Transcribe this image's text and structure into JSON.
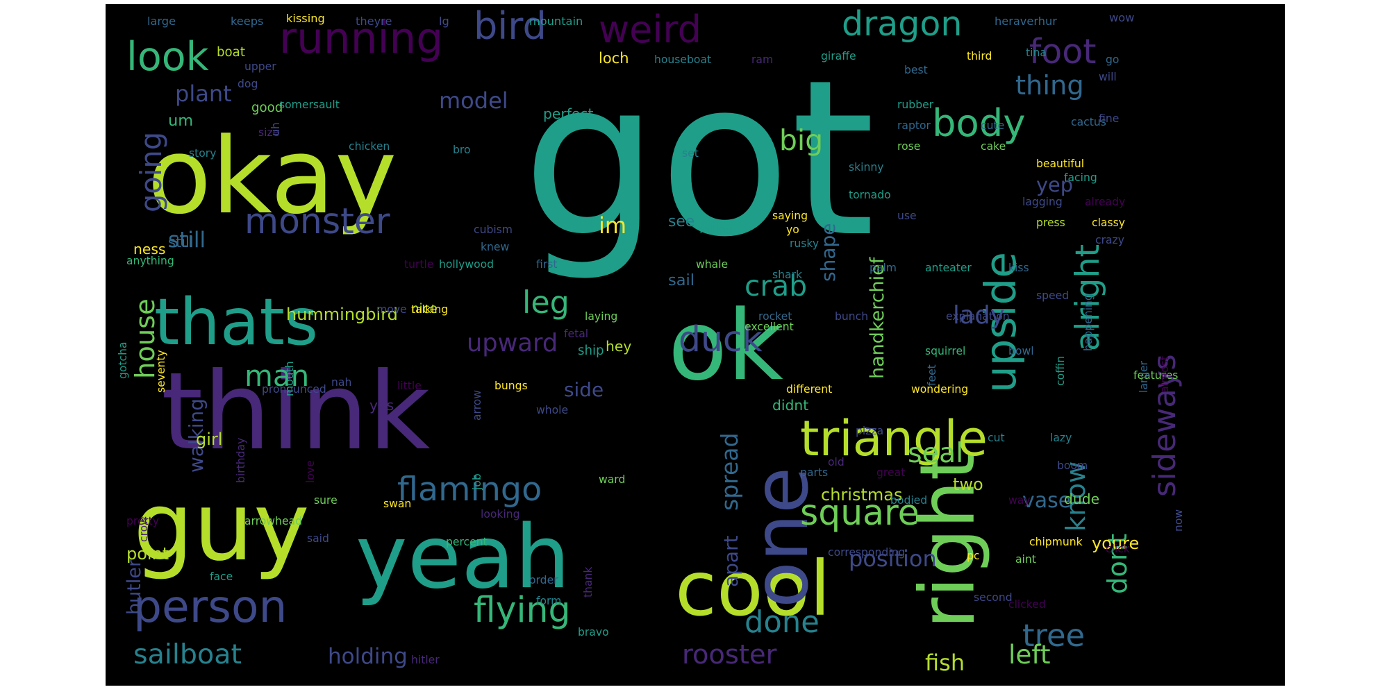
{
  "background": "#000000",
  "palette": [
    "#440154",
    "#482878",
    "#3e4989",
    "#31688e",
    "#26828e",
    "#1f9e89",
    "#35b779",
    "#6ece58",
    "#b5de2b",
    "#fde725"
  ],
  "words": [
    {
      "text": "got",
      "size": 100,
      "color": "#1f9e89"
    },
    {
      "text": "okay",
      "size": 72,
      "color": "#b5de2b"
    },
    {
      "text": "think",
      "size": 70,
      "color": "#482878"
    },
    {
      "text": "guy",
      "size": 62,
      "color": "#b5de2b"
    },
    {
      "text": "yeah",
      "size": 60,
      "color": "#1f9e89"
    },
    {
      "text": "thats",
      "size": 50,
      "color": "#1f9e89"
    },
    {
      "text": "ok",
      "size": 58,
      "color": "#35b779"
    },
    {
      "text": "cool",
      "size": 52,
      "color": "#b5de2b"
    },
    {
      "text": "right",
      "size": 52,
      "color": "#6ece58"
    },
    {
      "text": "one",
      "size": 52,
      "color": "#3e4989"
    },
    {
      "text": "triangle",
      "size": 40,
      "color": "#b5de2b"
    },
    {
      "text": "person",
      "size": 38,
      "color": "#3e4989"
    },
    {
      "text": "running",
      "size": 34,
      "color": "#440154"
    },
    {
      "text": "upside",
      "size": 34,
      "color": "#1f9e89"
    },
    {
      "text": "body",
      "size": 32,
      "color": "#35b779"
    },
    {
      "text": "bird",
      "size": 30,
      "color": "#3e4989"
    },
    {
      "text": "weird",
      "size": 30,
      "color": "#440154"
    },
    {
      "text": "look",
      "size": 30,
      "color": "#35b779"
    },
    {
      "text": "dragon",
      "size": 28,
      "color": "#1f9e89"
    },
    {
      "text": "foot",
      "size": 28,
      "color": "#482878"
    },
    {
      "text": "monster",
      "size": 28,
      "color": "#3e4989"
    },
    {
      "text": "square",
      "size": 28,
      "color": "#6ece58"
    },
    {
      "text": "flamingo",
      "size": 28,
      "color": "#31688e"
    },
    {
      "text": "flying",
      "size": 28,
      "color": "#35b779"
    },
    {
      "text": "tree",
      "size": 28,
      "color": "#31688e"
    },
    {
      "text": "duck",
      "size": 28,
      "color": "#3e4989"
    },
    {
      "text": "sideways",
      "size": 28,
      "color": "#482878"
    },
    {
      "text": "alright",
      "size": 28,
      "color": "#1f9e89"
    },
    {
      "text": "going",
      "size": 26,
      "color": "#3e4989"
    },
    {
      "text": "house",
      "size": 24,
      "color": "#6ece58"
    },
    {
      "text": "sailboat",
      "size": 24,
      "color": "#26828e"
    },
    {
      "text": "leg",
      "size": 24,
      "color": "#35b779"
    },
    {
      "text": "crab",
      "size": 24,
      "color": "#1f9e89"
    },
    {
      "text": "man",
      "size": 24,
      "color": "#35b779"
    },
    {
      "text": "done",
      "size": 24,
      "color": "#26828e"
    },
    {
      "text": "rooster",
      "size": 24,
      "color": "#482878"
    },
    {
      "text": "big",
      "size": 24,
      "color": "#6ece58"
    },
    {
      "text": "thing",
      "size": 24,
      "color": "#31688e"
    },
    {
      "text": "know",
      "size": 24,
      "color": "#26828e"
    },
    {
      "text": "dont",
      "size": 24,
      "color": "#35b779"
    },
    {
      "text": "upward",
      "size": 22,
      "color": "#482878"
    },
    {
      "text": "spread",
      "size": 22,
      "color": "#31688e"
    },
    {
      "text": "seal",
      "size": 22,
      "color": "#6ece58"
    },
    {
      "text": "left",
      "size": 22,
      "color": "#6ece58"
    },
    {
      "text": "lady",
      "size": 22,
      "color": "#3e4989"
    },
    {
      "text": "model",
      "size": 20,
      "color": "#3e4989"
    },
    {
      "text": "plant",
      "size": 20,
      "color": "#3e4989"
    },
    {
      "text": "still",
      "size": 20,
      "color": "#31688e"
    },
    {
      "text": "im",
      "size": 20,
      "color": "#fde725"
    },
    {
      "text": "shape",
      "size": 20,
      "color": "#31688e"
    },
    {
      "text": "handkerchief",
      "size": 20,
      "color": "#6ece58"
    },
    {
      "text": "holding",
      "size": 20,
      "color": "#3e4989"
    },
    {
      "text": "apart",
      "size": 20,
      "color": "#3e4989"
    },
    {
      "text": "position",
      "size": 20,
      "color": "#3e4989"
    },
    {
      "text": "fish",
      "size": 20,
      "color": "#b5de2b"
    },
    {
      "text": "vase",
      "size": 20,
      "color": "#31688e"
    },
    {
      "text": "walking",
      "size": 18,
      "color": "#3e4989"
    },
    {
      "text": "side",
      "size": 18,
      "color": "#3e4989"
    },
    {
      "text": "yep",
      "size": 18,
      "color": "#3e4989"
    },
    {
      "text": "butler",
      "size": 18,
      "color": "#3e4989"
    },
    {
      "text": "point",
      "size": 16,
      "color": "#b5de2b"
    },
    {
      "text": "hummingbird",
      "size": 16,
      "color": "#b5de2b"
    },
    {
      "text": "christmas",
      "size": 16,
      "color": "#b5de2b"
    },
    {
      "text": "youre",
      "size": 16,
      "color": "#fde725"
    },
    {
      "text": "girl",
      "size": 16,
      "color": "#b5de2b"
    },
    {
      "text": "two",
      "size": 16,
      "color": "#b5de2b"
    },
    {
      "text": "perfect",
      "size": 15,
      "color": "#1f9e89"
    },
    {
      "text": "um",
      "size": 15,
      "color": "#35b779"
    },
    {
      "text": "still",
      "size": 15,
      "color": "#31688e"
    },
    {
      "text": "sail",
      "size": 15,
      "color": "#31688e"
    },
    {
      "text": "see",
      "size": 15,
      "color": "#26828e"
    },
    {
      "text": "hey",
      "size": 14,
      "color": "#b5de2b"
    },
    {
      "text": "ness",
      "size": 14,
      "color": "#fde725"
    },
    {
      "text": "didnt",
      "size": 14,
      "color": "#35b779"
    },
    {
      "text": "dude",
      "size": 14,
      "color": "#6ece58"
    },
    {
      "text": "yes",
      "size": 14,
      "color": "#482878"
    },
    {
      "text": "loch",
      "size": 14,
      "color": "#fde725"
    },
    {
      "text": "ship",
      "size": 13,
      "color": "#1f9e89"
    },
    {
      "text": "nice",
      "size": 13,
      "color": "#b5de2b"
    },
    {
      "text": "good",
      "size": 13,
      "color": "#6ece58"
    },
    {
      "text": "boat",
      "size": 13,
      "color": "#b5de2b"
    },
    {
      "text": "large",
      "size": 12,
      "color": "#31688e"
    },
    {
      "text": "keeps",
      "size": 12,
      "color": "#31688e"
    },
    {
      "text": "kissing",
      "size": 12,
      "color": "#fde725"
    },
    {
      "text": "theyre",
      "size": 12,
      "color": "#3e4989"
    },
    {
      "text": "lg",
      "size": 12,
      "color": "#3e4989"
    },
    {
      "text": "mountain",
      "size": 12,
      "color": "#1f9e89"
    },
    {
      "text": "heraverhur",
      "size": 12,
      "color": "#31688e"
    },
    {
      "text": "wow",
      "size": 12,
      "color": "#3e4989"
    },
    {
      "text": "upper",
      "size": 12,
      "color": "#3e4989"
    },
    {
      "text": "dog",
      "size": 12,
      "color": "#3e4989"
    },
    {
      "text": "somersault",
      "size": 12,
      "color": "#1f9e89"
    },
    {
      "text": "houseboat",
      "size": 12,
      "color": "#26828e"
    },
    {
      "text": "ram",
      "size": 12,
      "color": "#482878"
    },
    {
      "text": "giraffe",
      "size": 12,
      "color": "#1f9e89"
    },
    {
      "text": "best",
      "size": 12,
      "color": "#31688e"
    },
    {
      "text": "third",
      "size": 12,
      "color": "#fde725"
    },
    {
      "text": "tina",
      "size": 12,
      "color": "#26828e"
    },
    {
      "text": "go",
      "size": 12,
      "color": "#31688e"
    },
    {
      "text": "will",
      "size": 12,
      "color": "#3e4989"
    },
    {
      "text": "size",
      "size": 12,
      "color": "#482878"
    },
    {
      "text": "uh",
      "size": 12,
      "color": "#3e4989"
    },
    {
      "text": "chicken",
      "size": 12,
      "color": "#26828e"
    },
    {
      "text": "bro",
      "size": 12,
      "color": "#26828e"
    },
    {
      "text": "rubber",
      "size": 12,
      "color": "#1f9e89"
    },
    {
      "text": "raptor",
      "size": 12,
      "color": "#31688e"
    },
    {
      "text": "rose",
      "size": 12,
      "color": "#6ece58"
    },
    {
      "text": "cute",
      "size": 12,
      "color": "#31688e"
    },
    {
      "text": "cake",
      "size": 12,
      "color": "#6ece58"
    },
    {
      "text": "cactus",
      "size": 12,
      "color": "#31688e"
    },
    {
      "text": "fine",
      "size": 12,
      "color": "#3e4989"
    },
    {
      "text": "story",
      "size": 12,
      "color": "#26828e"
    },
    {
      "text": "set",
      "size": 12,
      "color": "#26828e"
    },
    {
      "text": "beautiful",
      "size": 12,
      "color": "#fde725"
    },
    {
      "text": "facing",
      "size": 12,
      "color": "#1f9e89"
    },
    {
      "text": "already",
      "size": 12,
      "color": "#440154"
    },
    {
      "text": "lagging",
      "size": 12,
      "color": "#3e4989"
    },
    {
      "text": "skinny",
      "size": 12,
      "color": "#26828e"
    },
    {
      "text": "tornado",
      "size": 12,
      "color": "#1f9e89"
    },
    {
      "text": "cubism",
      "size": 12,
      "color": "#3e4989"
    },
    {
      "text": "falling",
      "size": 12,
      "color": "#1f9e89"
    },
    {
      "text": "yo",
      "size": 12,
      "color": "#fde725"
    },
    {
      "text": "saying",
      "size": 12,
      "color": "#fde725"
    },
    {
      "text": "use",
      "size": 12,
      "color": "#3e4989"
    },
    {
      "text": "press",
      "size": 12,
      "color": "#b5de2b"
    },
    {
      "text": "classy",
      "size": 12,
      "color": "#fde725"
    },
    {
      "text": "crazy",
      "size": 12,
      "color": "#3e4989"
    },
    {
      "text": "rusky",
      "size": 12,
      "color": "#26828e"
    },
    {
      "text": "knew",
      "size": 12,
      "color": "#31688e"
    },
    {
      "text": "anything",
      "size": 12,
      "color": "#35b779"
    },
    {
      "text": "turtle",
      "size": 12,
      "color": "#440154"
    },
    {
      "text": "hollywood",
      "size": 12,
      "color": "#1f9e89"
    },
    {
      "text": "first",
      "size": 12,
      "color": "#31688e"
    },
    {
      "text": "whale",
      "size": 12,
      "color": "#6ece58"
    },
    {
      "text": "shark",
      "size": 12,
      "color": "#26828e"
    },
    {
      "text": "palm",
      "size": 12,
      "color": "#31688e"
    },
    {
      "text": "anteater",
      "size": 12,
      "color": "#1f9e89"
    },
    {
      "text": "kiss",
      "size": 12,
      "color": "#31688e"
    },
    {
      "text": "speed",
      "size": 12,
      "color": "#3e4989"
    },
    {
      "text": "move",
      "size": 12,
      "color": "#3e4989"
    },
    {
      "text": "talking",
      "size": 12,
      "color": "#fde725"
    },
    {
      "text": "laying",
      "size": 12,
      "color": "#6ece58"
    },
    {
      "text": "rocket",
      "size": 12,
      "color": "#31688e"
    },
    {
      "text": "bunch",
      "size": 12,
      "color": "#3e4989"
    },
    {
      "text": "explanation",
      "size": 12,
      "color": "#3e4989"
    },
    {
      "text": "fetal",
      "size": 12,
      "color": "#482878"
    },
    {
      "text": "excellent",
      "size": 12,
      "color": "#6ece58"
    },
    {
      "text": "squirrel",
      "size": 12,
      "color": "#35b779"
    },
    {
      "text": "bowl",
      "size": 12,
      "color": "#31688e"
    },
    {
      "text": "gotcha",
      "size": 12,
      "color": "#1f9e89"
    },
    {
      "text": "seventy",
      "size": 12,
      "color": "#fde725"
    },
    {
      "text": "pronounced",
      "size": 12,
      "color": "#3e4989"
    },
    {
      "text": "mouth",
      "size": 12,
      "color": "#1f9e89"
    },
    {
      "text": "nah",
      "size": 12,
      "color": "#3e4989"
    },
    {
      "text": "little",
      "size": 12,
      "color": "#440154"
    },
    {
      "text": "bungs",
      "size": 12,
      "color": "#fde725"
    },
    {
      "text": "arrow",
      "size": 12,
      "color": "#3e4989"
    },
    {
      "text": "different",
      "size": 12,
      "color": "#fde725"
    },
    {
      "text": "wondering",
      "size": 12,
      "color": "#fde725"
    },
    {
      "text": "feet",
      "size": 12,
      "color": "#31688e"
    },
    {
      "text": "happening",
      "size": 12,
      "color": "#31688e"
    },
    {
      "text": "coffin",
      "size": 12,
      "color": "#1f9e89"
    },
    {
      "text": "features",
      "size": 12,
      "color": "#6ece58"
    },
    {
      "text": "larger",
      "size": 12,
      "color": "#31688e"
    },
    {
      "text": "almost",
      "size": 12,
      "color": "#440154"
    },
    {
      "text": "pizza",
      "size": 12,
      "color": "#3e4989"
    },
    {
      "text": "old",
      "size": 12,
      "color": "#482878"
    },
    {
      "text": "cut",
      "size": 12,
      "color": "#26828e"
    },
    {
      "text": "lazy",
      "size": 12,
      "color": "#26828e"
    },
    {
      "text": "whole",
      "size": 12,
      "color": "#3e4989"
    },
    {
      "text": "birthday",
      "size": 12,
      "color": "#482878"
    },
    {
      "text": "love",
      "size": 12,
      "color": "#440154"
    },
    {
      "text": "job",
      "size": 12,
      "color": "#1f9e89"
    },
    {
      "text": "ward",
      "size": 12,
      "color": "#6ece58"
    },
    {
      "text": "parts",
      "size": 12,
      "color": "#31688e"
    },
    {
      "text": "great",
      "size": 12,
      "color": "#440154"
    },
    {
      "text": "boom",
      "size": 12,
      "color": "#3e4989"
    },
    {
      "text": "bodied",
      "size": 12,
      "color": "#26828e"
    },
    {
      "text": "swan",
      "size": 12,
      "color": "#fde725"
    },
    {
      "text": "looking",
      "size": 12,
      "color": "#482878"
    },
    {
      "text": "pretty",
      "size": 12,
      "color": "#440154"
    },
    {
      "text": "arrowhead",
      "size": 12,
      "color": "#6ece58"
    },
    {
      "text": "said",
      "size": 12,
      "color": "#3e4989"
    },
    {
      "text": "sure",
      "size": 12,
      "color": "#6ece58"
    },
    {
      "text": "percent",
      "size": 12,
      "color": "#35b779"
    },
    {
      "text": "way",
      "size": 12,
      "color": "#440154"
    },
    {
      "text": "crow",
      "size": 12,
      "color": "#482878"
    },
    {
      "text": "chipmunk",
      "size": 12,
      "color": "#fde725"
    },
    {
      "text": "face",
      "size": 12,
      "color": "#1f9e89"
    },
    {
      "text": "corresponding",
      "size": 12,
      "color": "#3e4989"
    },
    {
      "text": "pc",
      "size": 12,
      "color": "#fde725"
    },
    {
      "text": "aint",
      "size": 12,
      "color": "#6ece58"
    },
    {
      "text": "click",
      "size": 12,
      "color": "#440154"
    },
    {
      "text": "now",
      "size": 12,
      "color": "#3e4989"
    },
    {
      "text": "order",
      "size": 12,
      "color": "#31688e"
    },
    {
      "text": "form",
      "size": 12,
      "color": "#26828e"
    },
    {
      "text": "thank",
      "size": 12,
      "color": "#482878"
    },
    {
      "text": "second",
      "size": 12,
      "color": "#3e4989"
    },
    {
      "text": "clicked",
      "size": 12,
      "color": "#440154"
    },
    {
      "text": "bravo",
      "size": 12,
      "color": "#1f9e89"
    },
    {
      "text": "hitler",
      "size": 12,
      "color": "#482878"
    }
  ]
}
